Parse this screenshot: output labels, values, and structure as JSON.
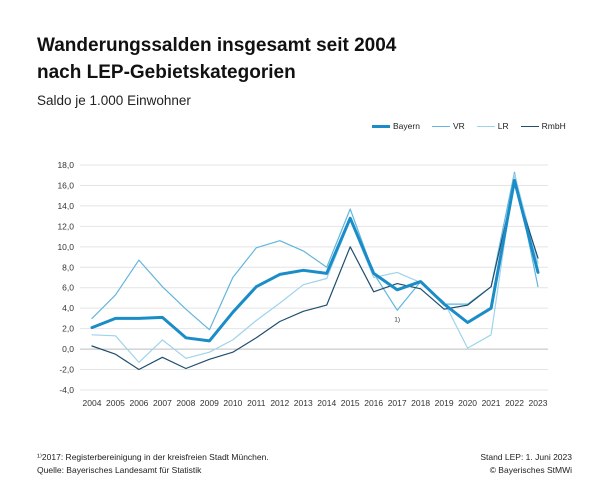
{
  "header": {
    "title_line1": "Wanderungssalden insgesamt seit 2004",
    "title_line2": "nach LEP-Gebietskategorien",
    "subtitle": "Saldo je 1.000 Einwohner"
  },
  "footer": {
    "footnote": "¹⁾2017: Registerbereinigung in der kreisfreien Stadt München.",
    "source": "Quelle: Bayerisches Landesamt für Statistik",
    "status": "Stand LEP: 1. Juni 2023",
    "copyright": "© Bayerisches StMWi"
  },
  "chart_data": {
    "type": "line",
    "title": "Wanderungssalden insgesamt seit 2004 nach LEP-Gebietskategorien",
    "ylabel": "Saldo je 1.000 Einwohner",
    "xlabel": "",
    "ylim": [
      -4,
      18
    ],
    "yticks": [
      "-4,0",
      "-2,0",
      "0,0",
      "2,0",
      "4,0",
      "6,0",
      "8,0",
      "10,0",
      "12,0",
      "14,0",
      "16,0",
      "18,0"
    ],
    "ytick_values": [
      -4,
      -2,
      0,
      2,
      4,
      6,
      8,
      10,
      12,
      14,
      16,
      18
    ],
    "grid": "horizontal",
    "legend_position": "top-right",
    "annotation": {
      "text": "1)",
      "x": "2017",
      "y": 3.0
    },
    "categories": [
      "2004",
      "2005",
      "2006",
      "2007",
      "2008",
      "2009",
      "2010",
      "2011",
      "2012",
      "2013",
      "2014",
      "2015",
      "2016",
      "2017",
      "2018",
      "2019",
      "2020",
      "2021",
      "2022",
      "2023"
    ],
    "series": [
      {
        "name": "Bayern",
        "color": "#1a8cc8",
        "width": 3,
        "values": [
          2.1,
          3.0,
          3.0,
          3.1,
          1.1,
          0.8,
          3.6,
          6.1,
          7.3,
          7.7,
          7.4,
          12.8,
          7.4,
          5.8,
          6.6,
          4.4,
          2.6,
          4.0,
          16.5,
          7.5
        ]
      },
      {
        "name": "VR",
        "color": "#62b6dc",
        "width": 1.2,
        "values": [
          3.0,
          5.3,
          8.7,
          6.1,
          3.9,
          1.9,
          7.0,
          9.9,
          10.6,
          9.6,
          8.0,
          13.7,
          7.4,
          3.8,
          6.6,
          4.4,
          4.4,
          6.1,
          17.3,
          6.1
        ]
      },
      {
        "name": "LR",
        "color": "#9fd3eb",
        "width": 1.2,
        "values": [
          1.4,
          1.3,
          -1.3,
          0.9,
          -0.9,
          -0.3,
          0.9,
          2.8,
          4.5,
          6.3,
          6.9,
          12.6,
          7.0,
          7.5,
          6.5,
          4.6,
          0.1,
          1.4,
          17.1,
          8.4
        ]
      },
      {
        "name": "RmbH",
        "color": "#1f4e6e",
        "width": 1.2,
        "values": [
          0.3,
          -0.5,
          -2.0,
          -0.8,
          -1.9,
          -1.0,
          -0.3,
          1.1,
          2.7,
          3.7,
          4.3,
          10.0,
          5.6,
          6.4,
          5.9,
          3.9,
          4.3,
          6.1,
          16.1,
          8.9
        ]
      }
    ]
  }
}
